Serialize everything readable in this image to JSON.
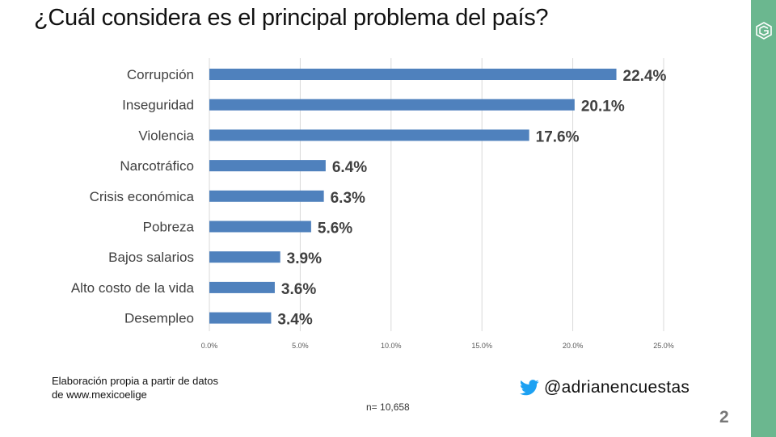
{
  "title": "¿Cuál considera es el principal problema del país?",
  "chart_data": {
    "type": "bar",
    "orientation": "horizontal",
    "categories": [
      "Corrupción",
      "Inseguridad",
      "Violencia",
      "Narcotráfico",
      "Crisis económica",
      "Pobreza",
      "Bajos salarios",
      "Alto costo de la vida",
      "Desempleo"
    ],
    "values": [
      22.4,
      20.1,
      17.6,
      6.4,
      6.3,
      5.6,
      3.9,
      3.6,
      3.4
    ],
    "value_labels": [
      "22.4%",
      "20.1%",
      "17.6%",
      "6.4%",
      "6.3%",
      "5.6%",
      "3.9%",
      "3.6%",
      "3.4%"
    ],
    "x_ticks": [
      0,
      5,
      10,
      15,
      20,
      25
    ],
    "x_tick_labels": [
      "0.0%",
      "5.0%",
      "10.0%",
      "15.0%",
      "20.0%",
      "25.0%"
    ],
    "xlim": [
      0,
      25
    ],
    "grid": true,
    "bar_color": "#4F81BD",
    "xlabel": "",
    "ylabel": ""
  },
  "footnote": {
    "line1": "Elaboración propia a partir de datos",
    "line2": "de www.mexicoelige"
  },
  "sample_size": "n= 10,658",
  "twitter_handle": "@adrianencuestas",
  "slide_number": "2",
  "colors": {
    "accent_green": "#6BB78F",
    "twitter_blue": "#1DA1F2"
  }
}
